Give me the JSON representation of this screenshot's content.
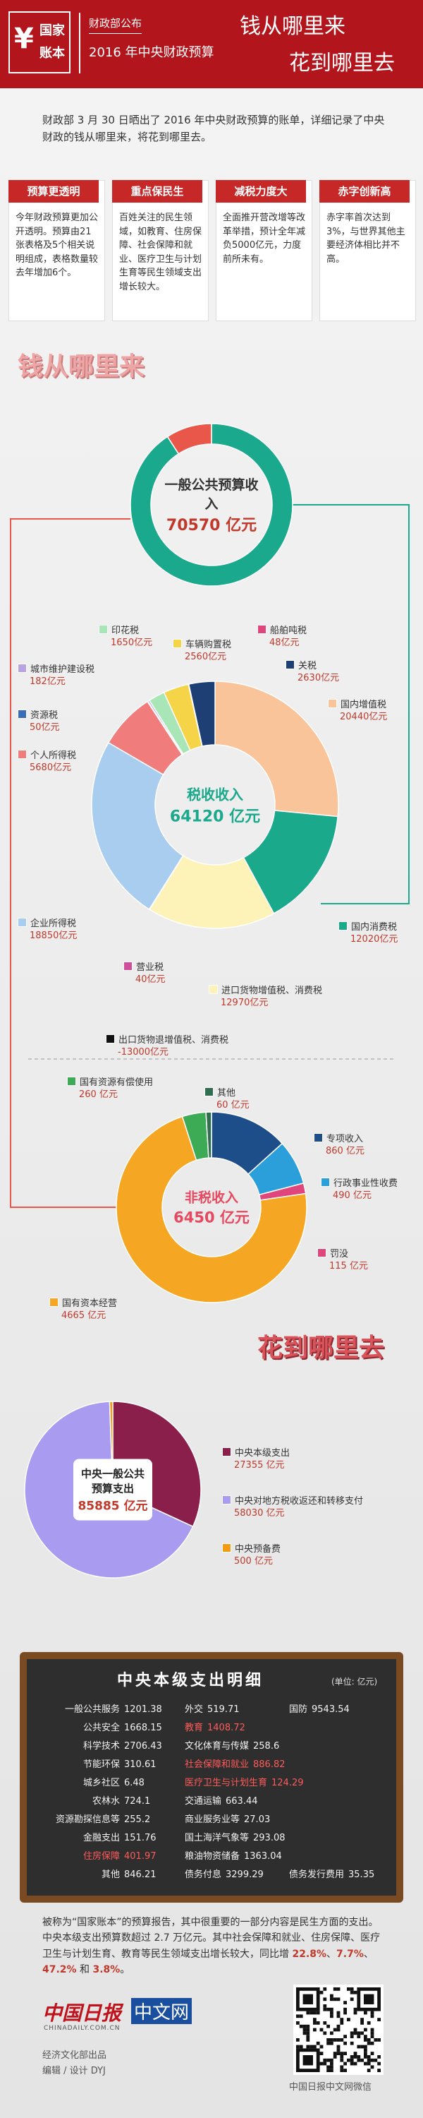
{
  "header": {
    "symbol": "¥",
    "logo": "国家账本",
    "publisher": "财政部公布",
    "subtitle": "2016 年中央财政预算",
    "headline": [
      "钱从哪里来",
      "花到哪里去"
    ]
  },
  "intro": "财政部 3 月 30 日晒出了 2016 年中央财政预算的账单，详细记录了中央财政的钱从哪里来，将花到哪里去。",
  "cards": [
    {
      "title": "预算更透明",
      "text": "今年财政预算更加公开透明。预算由21张表格及5个相关说明组成，表格数量较去年增加6个。"
    },
    {
      "title": "重点保民生",
      "text": "百姓关注的民生领域，如教育、住房保障、社会保障和就业、医疗卫生与计划生育等民生领域支出增长较大。"
    },
    {
      "title": "减税力度大",
      "text": "全面推开营改增等改革举措，预计全年减负5000亿元，力度前所未有。"
    },
    {
      "title": "赤字创新高",
      "text": "赤字率首次达到3%，与世界其他主要经济体相比并不高。"
    }
  ],
  "sections": [
    "钱从哪里来",
    "花到哪里去"
  ],
  "chart_data": [
    {
      "type": "ring",
      "title": "一般公共预算收入",
      "total": 70570,
      "total_label": "70570 亿元",
      "colors": [
        "#1aa98c",
        "#e8574a"
      ]
    },
    {
      "type": "donut",
      "title": "税收收入",
      "total": 64120,
      "total_label": "64120 亿元",
      "categories": [
        "国内增值税",
        "国内消费税",
        "进口货物增值税、消费税",
        "营业税",
        "企业所得税",
        "个人所得税",
        "资源税",
        "城市维护建设税",
        "印花税",
        "车辆购置税",
        "船舶吨税",
        "关税"
      ],
      "values": [
        20440,
        12020,
        12970,
        40,
        18850,
        5680,
        50,
        182,
        1650,
        2560,
        48,
        2630
      ],
      "value_labels": [
        "20440亿元",
        "12020亿元",
        "12970亿元",
        "40亿元",
        "18850亿元",
        "5680亿元",
        "50亿元",
        "182亿元",
        "1650亿元",
        "2560亿元",
        "48亿元",
        "2630亿元"
      ],
      "colors": [
        "#f9c49a",
        "#1ba98c",
        "#fdf3b8",
        "#d04f9a",
        "#a9cdef",
        "#f07c7c",
        "#3a6fb8",
        "#b8a4e0",
        "#a8e6b8",
        "#f5d547",
        "#e0457b",
        "#1d3f73"
      ],
      "adjustment": {
        "name": "出口货物退增值税、消费税",
        "value": -13000,
        "value_label": "-13000亿元",
        "color": "#111111"
      }
    },
    {
      "type": "donut",
      "title": "非税收入",
      "total": 6450,
      "total_label": "6450 亿元",
      "categories": [
        "专项收入",
        "行政事业性收费",
        "罚没",
        "国有资本经营",
        "国有资源有偿使用",
        "其他"
      ],
      "values": [
        860,
        490,
        115,
        4665,
        260,
        60
      ],
      "value_labels": [
        "860 亿元",
        "490 亿元",
        "115 亿元",
        "4665 亿元",
        "260 亿元",
        "60 亿元"
      ],
      "colors": [
        "#1d4e89",
        "#2b9fd9",
        "#e0457b",
        "#f5a623",
        "#3daa56",
        "#2f6f4f"
      ]
    },
    {
      "type": "pie",
      "title": "中央一般公共预算支出",
      "total": 85885,
      "total_label": "85885 亿元",
      "categories": [
        "中央本级支出",
        "中央对地方税收返还和转移支付",
        "中央预备费"
      ],
      "values": [
        27355,
        58030,
        500
      ],
      "value_labels": [
        "27355 亿元",
        "58030 亿元",
        "500 亿元"
      ],
      "colors": [
        "#8b1f4b",
        "#a99cf0",
        "#f39c12"
      ]
    }
  ],
  "table": {
    "title": "中央本级支出明细",
    "unit": "(单位: 亿元)",
    "rows": [
      [
        {
          "label": "一般公共服务",
          "value": 1201.38
        },
        {
          "label": "外交",
          "value": 519.71
        },
        {
          "label": "国防",
          "value": 9543.54
        }
      ],
      [
        {
          "label": "公共安全",
          "value": 1668.15
        },
        {
          "label": "教育",
          "value": 1408.72,
          "highlighted": true
        }
      ],
      [
        {
          "label": "科学技术",
          "value": 2706.43
        },
        {
          "label": "文化体育与传媒",
          "value": 258.6
        }
      ],
      [
        {
          "label": "节能环保",
          "value": 310.61
        },
        {
          "label": "社会保障和就业",
          "value": 886.82,
          "highlighted": true
        }
      ],
      [
        {
          "label": "城乡社区",
          "value": 6.48
        },
        {
          "label": "医疗卫生与计划生育",
          "value": 124.29,
          "highlighted": true
        }
      ],
      [
        {
          "label": "农林水",
          "value": 724.1
        },
        {
          "label": "交通运输",
          "value": 663.44
        }
      ],
      [
        {
          "label": "资源勘探信息等",
          "value": 255.2
        },
        {
          "label": "商业服务业等",
          "value": 27.03
        }
      ],
      [
        {
          "label": "金融支出",
          "value": 151.76
        },
        {
          "label": "国土海洋气象等",
          "value": 293.08
        }
      ],
      [
        {
          "label": "住房保障",
          "value": 401.97,
          "highlighted": true
        },
        {
          "label": "粮油物资储备",
          "value": 1363.04
        }
      ],
      [
        {
          "label": "其他",
          "value": 846.21
        },
        {
          "label": "债务付息",
          "value": 3299.29
        },
        {
          "label": "债务发行费用",
          "value": 35.35
        }
      ]
    ]
  },
  "summary": [
    {
      "text": "被称为“国家账本”的预算报告，其中很重要的一部分内容是民生方面的支出。中央本级支出预算数超过 2.7 万亿元。其中社会保障和就业、住房保障、医疗卫生与计划生育、教育等民生领域支出增长较大，同比增 "
    },
    {
      "text": "22.8%",
      "highlight": true
    },
    {
      "text": "、"
    },
    {
      "text": "7.7%",
      "highlight": true
    },
    {
      "text": "、"
    },
    {
      "text": "47.2%",
      "highlight": true
    },
    {
      "text": " 和 "
    },
    {
      "text": "3.8%",
      "highlight": true
    },
    {
      "text": "。"
    }
  ],
  "footer": {
    "brand": "中国日报",
    "brand_web": "中文网",
    "domain": "CHINADAILY.COM.CN",
    "producer": "经济文化部出品",
    "credit": "编辑 / 设计 DYJ",
    "qr_caption": "中国日报中文网微信"
  }
}
